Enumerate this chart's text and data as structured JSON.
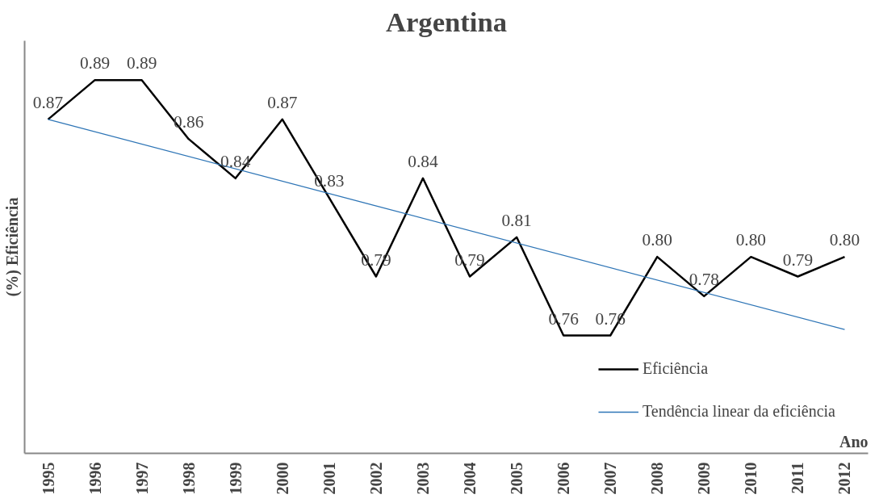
{
  "chart_data": {
    "type": "line",
    "title": "Argentina",
    "xlabel": "Ano",
    "ylabel": "(%) Eficiência",
    "x": [
      1995,
      1996,
      1997,
      1998,
      1999,
      2000,
      2001,
      2002,
      2003,
      2004,
      2005,
      2006,
      2007,
      2008,
      2009,
      2010,
      2011,
      2012
    ],
    "xlim": [
      1994.5,
      2012.5
    ],
    "xticks": [
      1995,
      1996,
      1997,
      1998,
      1999,
      2000,
      2001,
      2002,
      2003,
      2004,
      2005,
      2006,
      2007,
      2008,
      2009,
      2010,
      2011,
      2012
    ],
    "ylim": [
      0.7,
      0.91
    ],
    "grid": false,
    "legend": "bottom right",
    "series": [
      {
        "name": "Eficiência",
        "color": "#000000",
        "values": [
          0.87,
          0.89,
          0.89,
          0.86,
          0.84,
          0.87,
          0.83,
          0.79,
          0.84,
          0.79,
          0.81,
          0.76,
          0.76,
          0.8,
          0.78,
          0.8,
          0.79,
          0.8
        ],
        "value_labels": [
          "0.87",
          "0.89",
          "0.89",
          "0.86",
          "0.84",
          "0.87",
          "0.83",
          "0.79",
          "0.84",
          "0.79",
          "0.81",
          "0.76",
          "0.76",
          "0.80",
          "0.78",
          "0.80",
          "0.79",
          "0.80"
        ]
      },
      {
        "name": "Tendência linear da eficiência",
        "type": "line",
        "color": "#2e75b6",
        "x": [
          1995,
          2012
        ],
        "values": [
          0.87,
          0.763
        ]
      }
    ]
  }
}
